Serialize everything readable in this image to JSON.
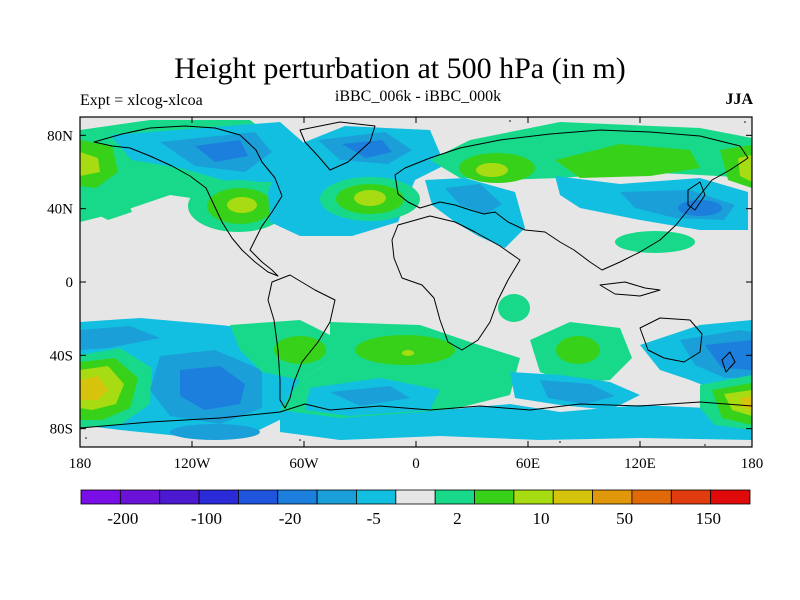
{
  "title": "Height perturbation at 500 hPa (in m)",
  "left_subtitle": "Expt = xlcog-xlcoa",
  "center_subtitle": "iBBC_006k - iBBC_000k",
  "right_subtitle": "JJA",
  "lon_ticks": [
    "180",
    "120W",
    "60W",
    "0",
    "60E",
    "120E",
    "180"
  ],
  "lat_ticks": [
    "80N",
    "40N",
    "0",
    "40S",
    "80S"
  ],
  "colorbar": {
    "colors": [
      "#7a0ee6",
      "#6a12d8",
      "#4d19d0",
      "#2a2ad8",
      "#1f55dd",
      "#1c7fdd",
      "#1a9fd8",
      "#12bfe0",
      "#e6e6e6",
      "#18d98a",
      "#38d11a",
      "#a8dc12",
      "#d6c40c",
      "#e0980a",
      "#e06a08",
      "#e03c10",
      "#e00a0a"
    ],
    "labels": [
      "-200",
      "-100",
      "-20",
      "-5",
      "2",
      "10",
      "50",
      "150"
    ]
  }
}
